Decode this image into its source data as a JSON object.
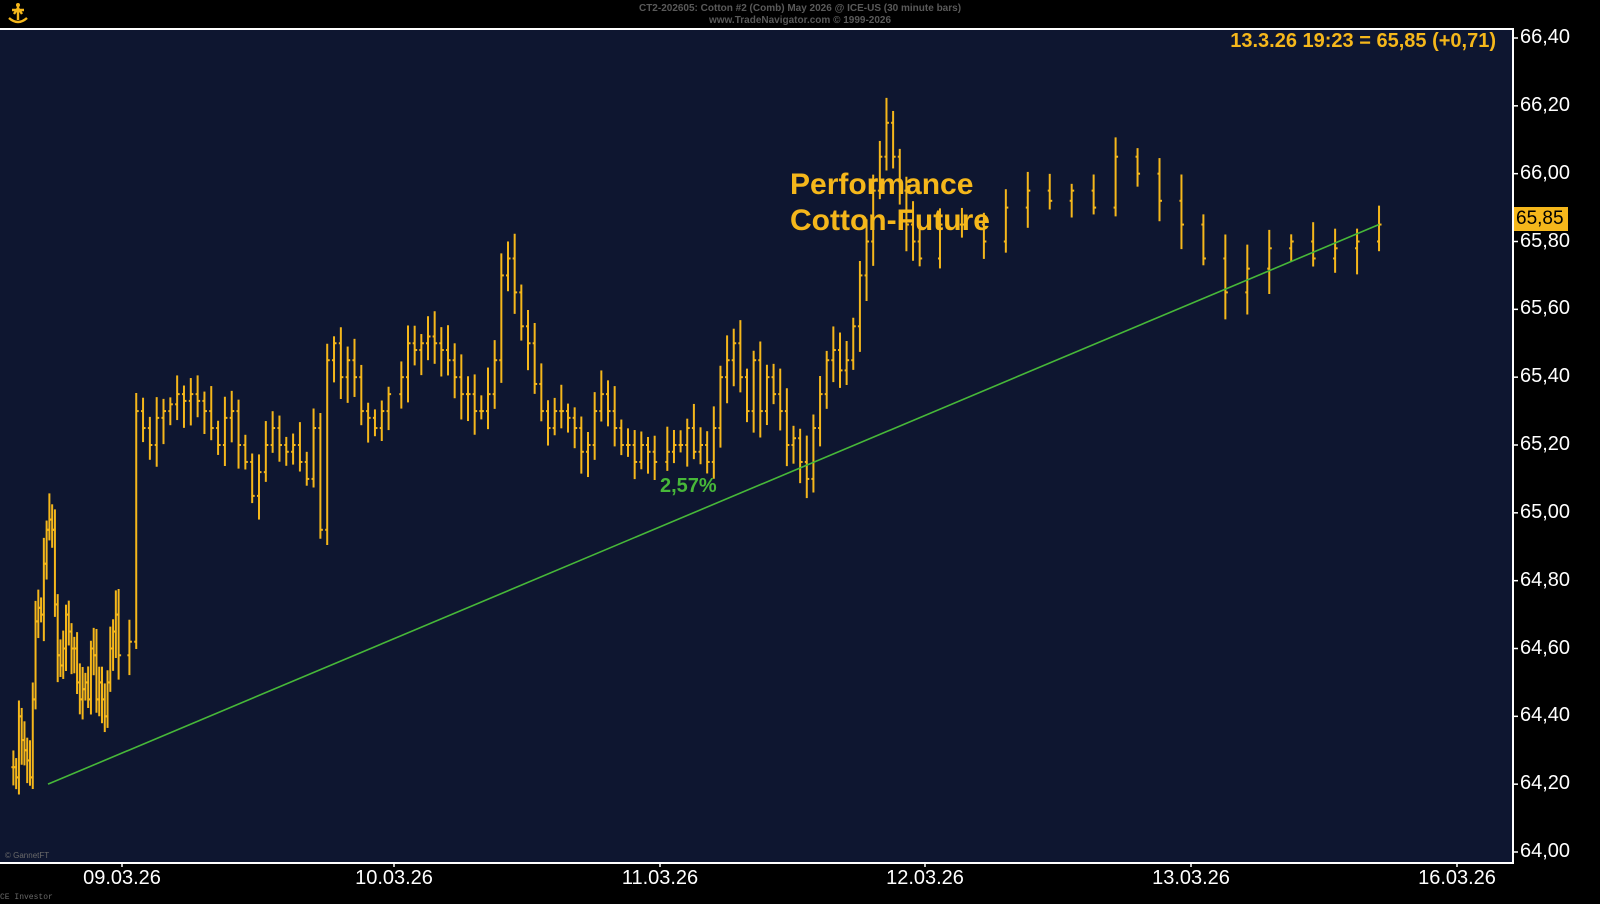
{
  "header": {
    "line1": "CT2-202605:  Cotton #2 (Comb) May 2026 @ ICE-US  (30 minute bars)",
    "line2": "www.TradeNavigator.com © 1999-2026",
    "logo_icon": "ship-logo-icon"
  },
  "readout": "13.3.26 19:23 = 65,85 (+0,71)",
  "title_line1": "Performance",
  "title_line2": "Cotton-Future",
  "performance_label": "2,57%",
  "price_tag": "65,85",
  "credit": "© GannetFT",
  "footer_credit": "CE Investor",
  "colors": {
    "background": "#0e1630",
    "bars": "#f5b71b",
    "trendline": "#47b839",
    "axis_text": "#ffffff"
  },
  "chart_data": {
    "type": "ohlc",
    "title": "Performance Cotton-Future",
    "xlabel": "",
    "ylabel": "",
    "ylim": [
      64.0,
      66.4
    ],
    "y_ticks": [
      "64,00",
      "64,20",
      "64,40",
      "64,60",
      "64,80",
      "65,00",
      "65,20",
      "65,40",
      "65,60",
      "65,80",
      "66,00",
      "66,20",
      "66,40"
    ],
    "x_ticks": [
      "09.03.26",
      "10.03.26",
      "11.03.26",
      "12.03.26",
      "13.03.26",
      "16.03.26"
    ],
    "last_price": 65.85,
    "change": 0.71,
    "trendline": {
      "from": {
        "x": "09.03.26",
        "y": 64.2
      },
      "to": {
        "x": "13.03.26 19:23",
        "y": 65.85
      },
      "label": "2,57%"
    },
    "series": [
      {
        "name": "CT2-202605 30 minute bars",
        "days": [
          {
            "day": "09.03.26",
            "closes": [
              64.25,
              64.22,
              64.4,
              64.33,
              64.3,
              64.27,
              64.22,
              64.45,
              64.68,
              64.72,
              64.7,
              64.85,
              64.95,
              64.98,
              64.95,
              64.73,
              64.58,
              64.55,
              64.6,
              64.7,
              64.65,
              64.6,
              64.6,
              64.5,
              64.45,
              64.48,
              64.5,
              64.45,
              64.6,
              64.58,
              64.45,
              64.5,
              64.45,
              64.4,
              64.5,
              64.6,
              64.65,
              64.7,
              64.58
            ]
          },
          {
            "day": "10.03.26",
            "closes": [
              64.62,
              65.3,
              65.25,
              65.2,
              65.28,
              65.3,
              65.32,
              65.35,
              65.33,
              65.35,
              65.33,
              65.3,
              65.25,
              65.2,
              65.28,
              65.3,
              65.2,
              65.15,
              65.05,
              65.12,
              65.2,
              65.25,
              65.2,
              65.18,
              65.2,
              65.15,
              65.1,
              65.25,
              64.95,
              65.45,
              65.5,
              65.4,
              65.45,
              65.4,
              65.3,
              65.28,
              65.25,
              65.3,
              65.35
            ]
          },
          {
            "day": "11.03.26",
            "closes": [
              65.4,
              65.5,
              65.48,
              65.5,
              65.52,
              65.5,
              65.48,
              65.45,
              65.4,
              65.35,
              65.35,
              65.3,
              65.3,
              65.35,
              65.45,
              65.7,
              65.75,
              65.65,
              65.55,
              65.5,
              65.38,
              65.3,
              65.25,
              65.3,
              65.3,
              65.28,
              65.25,
              65.18,
              65.2,
              65.3,
              65.35,
              65.3,
              65.25,
              65.2,
              65.2,
              65.15,
              65.2,
              65.18,
              65.15
            ]
          },
          {
            "day": "12.03.26",
            "closes": [
              65.18,
              65.2,
              65.2,
              65.25,
              65.18,
              65.2,
              65.15,
              65.25,
              65.4,
              65.45,
              65.5,
              65.4,
              65.3,
              65.45,
              65.3,
              65.4,
              65.35,
              65.3,
              65.2,
              65.22,
              65.15,
              65.1,
              65.25,
              65.35,
              65.45,
              65.48,
              65.42,
              65.45,
              65.55,
              65.7,
              65.8,
              65.95,
              66.05,
              66.15,
              66.05,
              65.95,
              65.85,
              65.8,
              65.75
            ]
          },
          {
            "day": "13.03.26",
            "closes": [
              65.85,
              65.85,
              65.8,
              65.9,
              65.95,
              65.92,
              65.95,
              65.9,
              66.05,
              66.0,
              65.92,
              65.85,
              65.75,
              65.65,
              65.72,
              65.78,
              65.8,
              65.75,
              65.78,
              65.8,
              65.85
            ]
          }
        ]
      }
    ]
  }
}
